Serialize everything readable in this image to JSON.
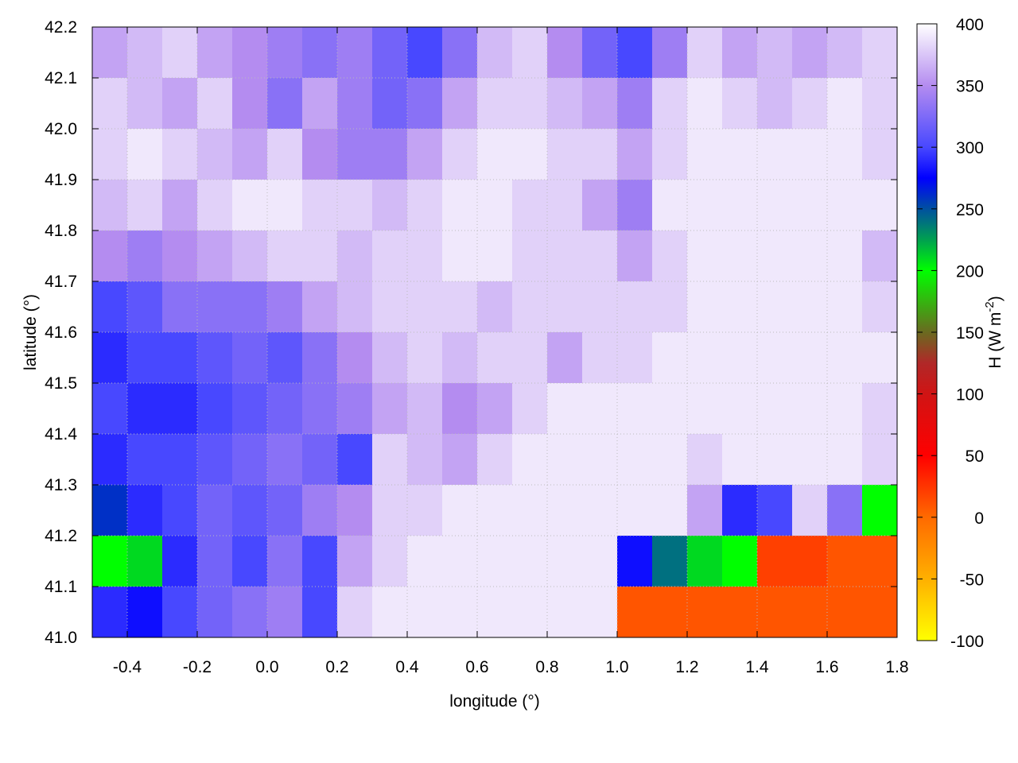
{
  "chart_data": {
    "type": "heatmap",
    "xlabel": "longitude (°)",
    "ylabel": "latitude (°)",
    "colorbar_label": "H (W m",
    "colorbar_label_sup": "-2",
    "colorbar_label_end": ")",
    "xlim": [
      -0.5,
      1.8
    ],
    "ylim": [
      41.0,
      42.2
    ],
    "zlim": [
      -100,
      400
    ],
    "grid": true,
    "x_ticks": [
      "-0.4",
      "-0.2",
      "0.0",
      "0.2",
      "0.4",
      "0.6",
      "0.8",
      "1.0",
      "1.2",
      "1.4",
      "1.6",
      "1.8"
    ],
    "y_ticks": [
      "41.0",
      "41.1",
      "41.2",
      "41.3",
      "41.4",
      "41.5",
      "41.6",
      "41.7",
      "41.8",
      "41.9",
      "42.0",
      "42.1",
      "42.2"
    ],
    "colorbar_ticks": [
      "-100",
      "-50",
      "0",
      "50",
      "100",
      "150",
      "200",
      "250",
      "300",
      "350",
      "400"
    ],
    "colormap": [
      {
        "value": -100,
        "color": "#ffff00"
      },
      {
        "value": -50,
        "color": "#ffb000"
      },
      {
        "value": 0,
        "color": "#ff6a00"
      },
      {
        "value": 50,
        "color": "#ff0000"
      },
      {
        "value": 100,
        "color": "#d01414"
      },
      {
        "value": 125,
        "color": "#b02828"
      },
      {
        "value": 150,
        "color": "#6a6a20"
      },
      {
        "value": 200,
        "color": "#00ff00"
      },
      {
        "value": 225,
        "color": "#00a050"
      },
      {
        "value": 250,
        "color": "#0050a0"
      },
      {
        "value": 275,
        "color": "#0000ff"
      },
      {
        "value": 300,
        "color": "#4848ff"
      },
      {
        "value": 350,
        "color": "#b48cf0"
      },
      {
        "value": 400,
        "color": "#ffffff"
      }
    ],
    "grid_lon": [
      -0.45,
      -0.35,
      -0.25,
      -0.15,
      -0.05,
      0.05,
      0.15,
      0.25,
      0.35,
      0.45,
      0.55,
      0.65,
      0.75,
      0.85,
      0.95,
      1.05,
      1.15,
      1.25,
      1.35,
      1.45,
      1.55,
      1.65,
      1.75
    ],
    "grid_lat": [
      42.15,
      42.05,
      41.95,
      41.85,
      41.75,
      41.65,
      41.55,
      41.45,
      41.35,
      41.25,
      41.15,
      41.05
    ],
    "values": [
      [
        360,
        370,
        380,
        360,
        350,
        340,
        330,
        340,
        320,
        300,
        330,
        370,
        380,
        350,
        320,
        300,
        340,
        380,
        360,
        370,
        360,
        370,
        380
      ],
      [
        380,
        370,
        360,
        380,
        350,
        330,
        360,
        340,
        320,
        330,
        360,
        380,
        380,
        370,
        360,
        340,
        380,
        390,
        380,
        370,
        380,
        390,
        380
      ],
      [
        380,
        390,
        380,
        370,
        360,
        380,
        350,
        340,
        340,
        360,
        380,
        390,
        390,
        380,
        380,
        360,
        380,
        390,
        390,
        390,
        390,
        390,
        380
      ],
      [
        370,
        380,
        360,
        380,
        390,
        390,
        380,
        380,
        370,
        380,
        390,
        390,
        380,
        380,
        360,
        340,
        390,
        390,
        390,
        390,
        390,
        390,
        390
      ],
      [
        350,
        340,
        350,
        360,
        370,
        380,
        380,
        370,
        380,
        380,
        390,
        390,
        380,
        380,
        380,
        360,
        380,
        390,
        390,
        390,
        390,
        390,
        370
      ],
      [
        300,
        310,
        330,
        330,
        330,
        340,
        360,
        370,
        380,
        380,
        380,
        370,
        380,
        380,
        380,
        380,
        380,
        390,
        390,
        390,
        390,
        390,
        380
      ],
      [
        290,
        300,
        300,
        310,
        320,
        310,
        330,
        350,
        370,
        380,
        370,
        380,
        380,
        360,
        380,
        380,
        390,
        390,
        390,
        390,
        390,
        390,
        390
      ],
      [
        300,
        290,
        290,
        300,
        310,
        320,
        330,
        340,
        360,
        370,
        350,
        360,
        380,
        390,
        390,
        390,
        390,
        390,
        390,
        390,
        390,
        390,
        380
      ],
      [
        290,
        300,
        300,
        310,
        320,
        330,
        320,
        300,
        380,
        370,
        360,
        380,
        390,
        390,
        390,
        390,
        390,
        380,
        390,
        390,
        390,
        390,
        380
      ],
      [
        260,
        290,
        300,
        320,
        310,
        320,
        340,
        350,
        380,
        380,
        390,
        390,
        390,
        390,
        390,
        390,
        390,
        360,
        290,
        300,
        380,
        330,
        200
      ],
      [
        200,
        210,
        290,
        320,
        300,
        330,
        300,
        360,
        380,
        390,
        390,
        390,
        390,
        390,
        390,
        280,
        240,
        210,
        200,
        20,
        20,
        10,
        10
      ],
      [
        290,
        280,
        300,
        320,
        330,
        340,
        300,
        380,
        390,
        390,
        390,
        390,
        390,
        390,
        390,
        10,
        10,
        10,
        10,
        10,
        10,
        10,
        10
      ]
    ]
  }
}
